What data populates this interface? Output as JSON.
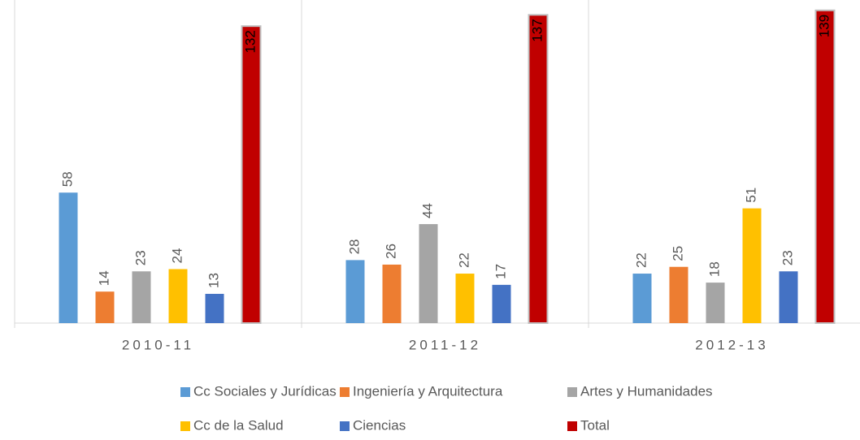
{
  "chart_data": {
    "type": "bar",
    "categories": [
      "2010-11",
      "2011-12",
      "2012-13"
    ],
    "series": [
      {
        "name": "Cc Sociales y Jurídicas",
        "color": "#5b9bd5",
        "values": [
          58,
          28,
          22
        ]
      },
      {
        "name": "Ingeniería y Arquitectura",
        "color": "#ed7d31",
        "values": [
          14,
          26,
          25
        ]
      },
      {
        "name": "Artes y Humanidades",
        "color": "#a5a5a5",
        "values": [
          23,
          44,
          18
        ]
      },
      {
        "name": "Cc de la Salud",
        "color": "#ffc000",
        "values": [
          24,
          22,
          51
        ]
      },
      {
        "name": "Ciencias",
        "color": "#4472c4",
        "values": [
          13,
          17,
          23
        ]
      },
      {
        "name": "Total",
        "color": "#c00000",
        "values": [
          132,
          137,
          139
        ]
      }
    ],
    "ylim": [
      0,
      140
    ],
    "legend": "bottom"
  }
}
